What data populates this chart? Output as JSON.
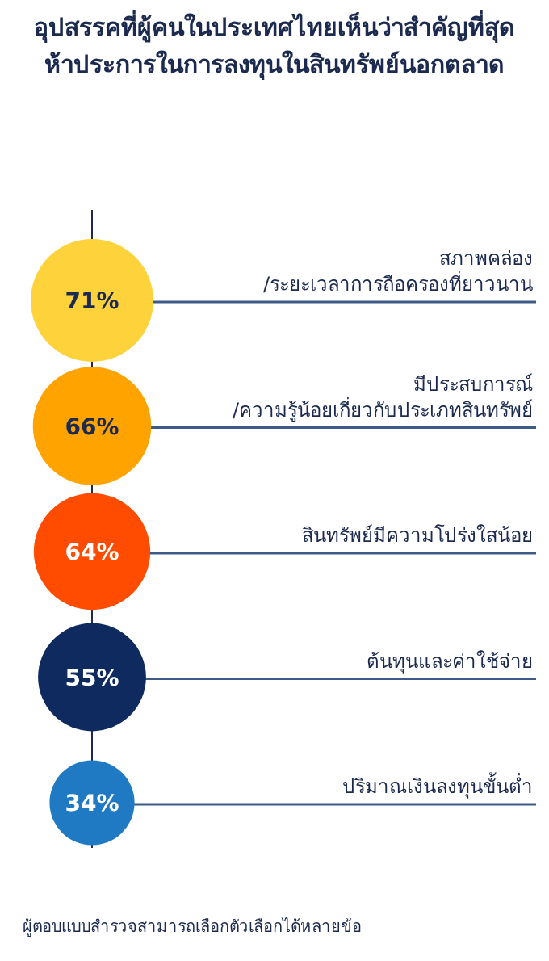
{
  "chart_data": {
    "type": "other",
    "title": "อุปสรรคที่ผู้คนในประเทศไทยเห็นว่าสำคัญที่สุดห้าประการในการลงทุนในสินทรัพย์นอกตลาด",
    "categories": [
      "สภาพคล่อง\n/ระยะเวลาการถือครองที่ยาวนาน",
      "มีประสบการณ์\n/ความรู้น้อยเกี่ยวกับประเภทสินทรัพย์",
      "สินทรัพย์มีความโปร่งใสน้อย",
      "ต้นทุนและค่าใช้จ่าย",
      "ปริมาณเงินลงทุนขั้นต่ำ"
    ],
    "values": [
      71,
      66,
      64,
      55,
      34
    ],
    "colors": [
      "#fdd23a",
      "#ffa300",
      "#ff4c00",
      "#0f2a5f",
      "#1f7ac3"
    ],
    "value_labels": [
      "71%",
      "66%",
      "64%",
      "55%",
      "34%"
    ],
    "annotations": [
      "ผู้ตอบแบบสำรวจสามารถเลือกตัวเลือกได้หลายข้อ"
    ]
  }
}
